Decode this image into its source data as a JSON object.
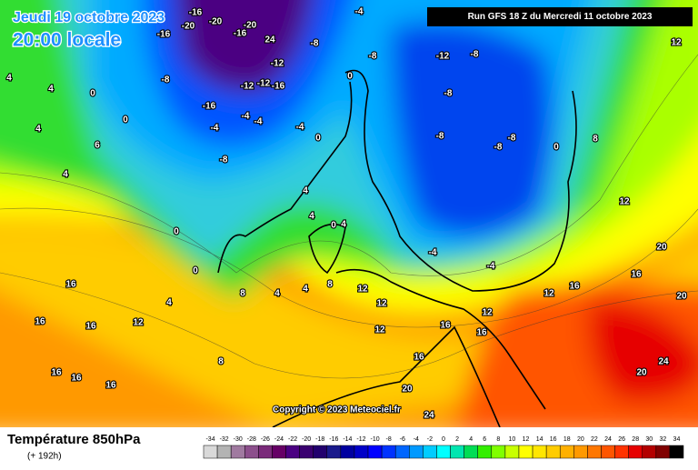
{
  "header": {
    "date": "Jeudi 19 octobre 2023",
    "time": "20:00 locale",
    "run": "Run GFS 18 Z du Mercredi 11 octobre 2023",
    "copyright": "Copyright © 2023 Meteociel.fr"
  },
  "legend": {
    "title": "Température 850hPa",
    "subtitle": "(+ 192h)",
    "scale": [
      -34,
      -32,
      -30,
      -28,
      -26,
      -24,
      -22,
      -20,
      -18,
      -16,
      -14,
      -12,
      -10,
      -8,
      -6,
      -4,
      -2,
      0,
      2,
      4,
      6,
      8,
      10,
      12,
      14,
      16,
      18,
      20,
      22,
      24,
      26,
      28,
      30,
      32,
      34
    ],
    "colors": [
      "#d9d9d9",
      "#b3b3b3",
      "#a07aa0",
      "#8c4f8c",
      "#7a2a7a",
      "#660066",
      "#4b0082",
      "#3a0070",
      "#22006e",
      "#1a1a8c",
      "#0000a0",
      "#0000c8",
      "#0000ff",
      "#0033ff",
      "#0066ff",
      "#0099ff",
      "#00ccff",
      "#00ffff",
      "#00e6b0",
      "#00dd55",
      "#33ee00",
      "#80ff00",
      "#c8ff00",
      "#ffff00",
      "#ffe600",
      "#ffcc00",
      "#ffb000",
      "#ff9900",
      "#ff7700",
      "#ff5500",
      "#ff3300",
      "#e60000",
      "#b30000",
      "#800000",
      "#000000"
    ]
  },
  "contour_labels": [
    -16,
    -20,
    -16,
    -20,
    -20,
    -16,
    24,
    -8,
    -4,
    -8,
    -12,
    -8,
    -12,
    -12,
    -16,
    -16,
    -4,
    -4,
    -4,
    -8,
    -4,
    0,
    0,
    -12,
    -8,
    -8,
    -8,
    -8,
    -8,
    0,
    8,
    12,
    4,
    4,
    4,
    6,
    4,
    0,
    0,
    4,
    4,
    0,
    4,
    0,
    0,
    4,
    8,
    4,
    8,
    12,
    12,
    12,
    16,
    16,
    20,
    20,
    12,
    16,
    16,
    16,
    16,
    16,
    16,
    12,
    8,
    16,
    16,
    16,
    20,
    24,
    20,
    24,
    -4,
    -4,
    12,
    12,
    4
  ]
}
